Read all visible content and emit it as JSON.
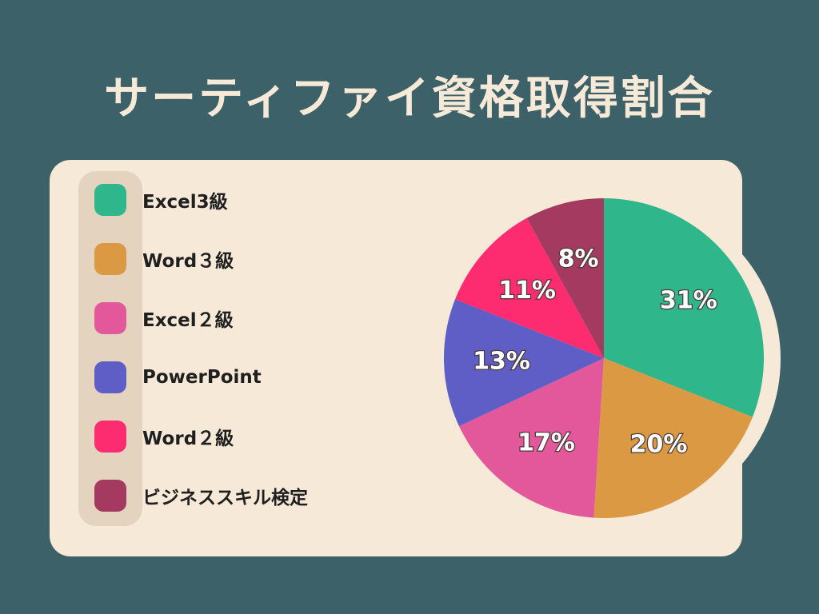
{
  "title": "サーティファイ資格取得割合",
  "colors": {
    "background": "#3d6168",
    "card": "#f6e9d7",
    "legend_bar": "#e4d3bf"
  },
  "chart_data": {
    "type": "pie",
    "title": "サーティファイ資格取得割合",
    "categories": [
      "Excel3級",
      "Word３級",
      "Excel２級",
      "PowerPoint",
      "Word２級",
      "ビジネススキル検定"
    ],
    "values": [
      31,
      20,
      17,
      13,
      11,
      8
    ],
    "labels": [
      "31%",
      "20%",
      "17%",
      "13%",
      "11%",
      "8%"
    ],
    "colors": [
      "#2fb68a",
      "#dc9944",
      "#e3589a",
      "#5e5ec6",
      "#fd2b70",
      "#a43a5f"
    ],
    "legend_position": "left"
  }
}
